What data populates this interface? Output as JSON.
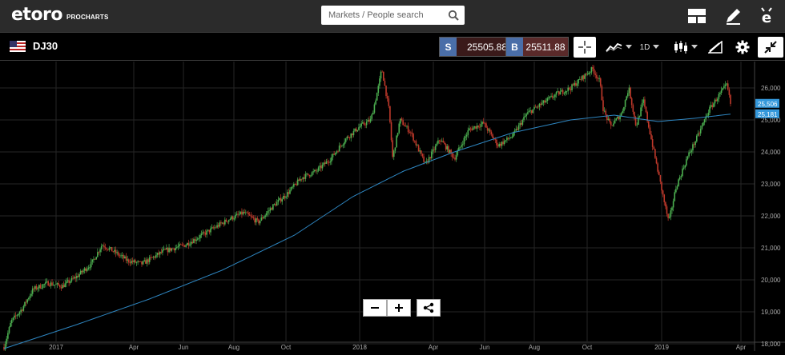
{
  "header": {
    "brand": "etoro",
    "brand_sub": "PROCHARTS",
    "search_placeholder": "Markets / People search"
  },
  "instrument": {
    "symbol": "DJ30",
    "sell_label": "S",
    "sell_price": "25505.88",
    "buy_label": "B",
    "buy_price": "25511.88"
  },
  "toolbar": {
    "timeframe": "1D"
  },
  "colors": {
    "up": "#4caf50",
    "down": "#c0392b",
    "ma": "#2e86c1",
    "last_price_tag": "#3498db"
  },
  "chart_data": {
    "type": "candlestick",
    "x_ticks": [
      "2017",
      "Apr",
      "Jun",
      "Aug",
      "Oct",
      "2018",
      "Apr",
      "Jun",
      "Aug",
      "Oct",
      "2019",
      "Apr"
    ],
    "y_ticks": [
      "18,000",
      "19,000",
      "20,000",
      "21,000",
      "22,000",
      "23,000",
      "24,000",
      "25,000",
      "26,000"
    ],
    "ylim": [
      17800,
      26700
    ],
    "last_price_label": "25,506",
    "ma_label": "25,181",
    "price_path": [
      [
        0,
        17900
      ],
      [
        0.01,
        18700
      ],
      [
        0.025,
        19100
      ],
      [
        0.04,
        19700
      ],
      [
        0.06,
        19900
      ],
      [
        0.08,
        19800
      ],
      [
        0.1,
        20100
      ],
      [
        0.12,
        20500
      ],
      [
        0.135,
        21100
      ],
      [
        0.15,
        20900
      ],
      [
        0.17,
        20600
      ],
      [
        0.19,
        20500
      ],
      [
        0.22,
        20900
      ],
      [
        0.25,
        21100
      ],
      [
        0.28,
        21500
      ],
      [
        0.31,
        21900
      ],
      [
        0.33,
        22100
      ],
      [
        0.35,
        21800
      ],
      [
        0.37,
        22300
      ],
      [
        0.39,
        22700
      ],
      [
        0.41,
        23200
      ],
      [
        0.43,
        23400
      ],
      [
        0.45,
        23800
      ],
      [
        0.47,
        24400
      ],
      [
        0.49,
        24800
      ],
      [
        0.505,
        25000
      ],
      [
        0.515,
        26000
      ],
      [
        0.52,
        26600
      ],
      [
        0.53,
        25300
      ],
      [
        0.535,
        23800
      ],
      [
        0.545,
        25000
      ],
      [
        0.56,
        24600
      ],
      [
        0.58,
        23600
      ],
      [
        0.6,
        24400
      ],
      [
        0.62,
        23800
      ],
      [
        0.64,
        24700
      ],
      [
        0.66,
        24900
      ],
      [
        0.68,
        24200
      ],
      [
        0.7,
        24500
      ],
      [
        0.72,
        25200
      ],
      [
        0.74,
        25500
      ],
      [
        0.76,
        25800
      ],
      [
        0.78,
        26000
      ],
      [
        0.8,
        26400
      ],
      [
        0.81,
        26600
      ],
      [
        0.82,
        26200
      ],
      [
        0.825,
        25300
      ],
      [
        0.835,
        24800
      ],
      [
        0.85,
        25200
      ],
      [
        0.86,
        26000
      ],
      [
        0.87,
        24800
      ],
      [
        0.88,
        25600
      ],
      [
        0.89,
        24500
      ],
      [
        0.9,
        23400
      ],
      [
        0.91,
        22300
      ],
      [
        0.915,
        21800
      ],
      [
        0.925,
        22900
      ],
      [
        0.94,
        23800
      ],
      [
        0.955,
        24500
      ],
      [
        0.97,
        25300
      ],
      [
        0.985,
        25800
      ],
      [
        0.995,
        26100
      ],
      [
        1.0,
        25500
      ]
    ],
    "ma_path": [
      [
        0,
        17850
      ],
      [
        0.1,
        18600
      ],
      [
        0.2,
        19400
      ],
      [
        0.3,
        20300
      ],
      [
        0.4,
        21400
      ],
      [
        0.48,
        22600
      ],
      [
        0.55,
        23400
      ],
      [
        0.62,
        24000
      ],
      [
        0.7,
        24600
      ],
      [
        0.78,
        25000
      ],
      [
        0.84,
        25150
      ],
      [
        0.9,
        24950
      ],
      [
        0.95,
        25050
      ],
      [
        1.0,
        25181
      ]
    ]
  }
}
